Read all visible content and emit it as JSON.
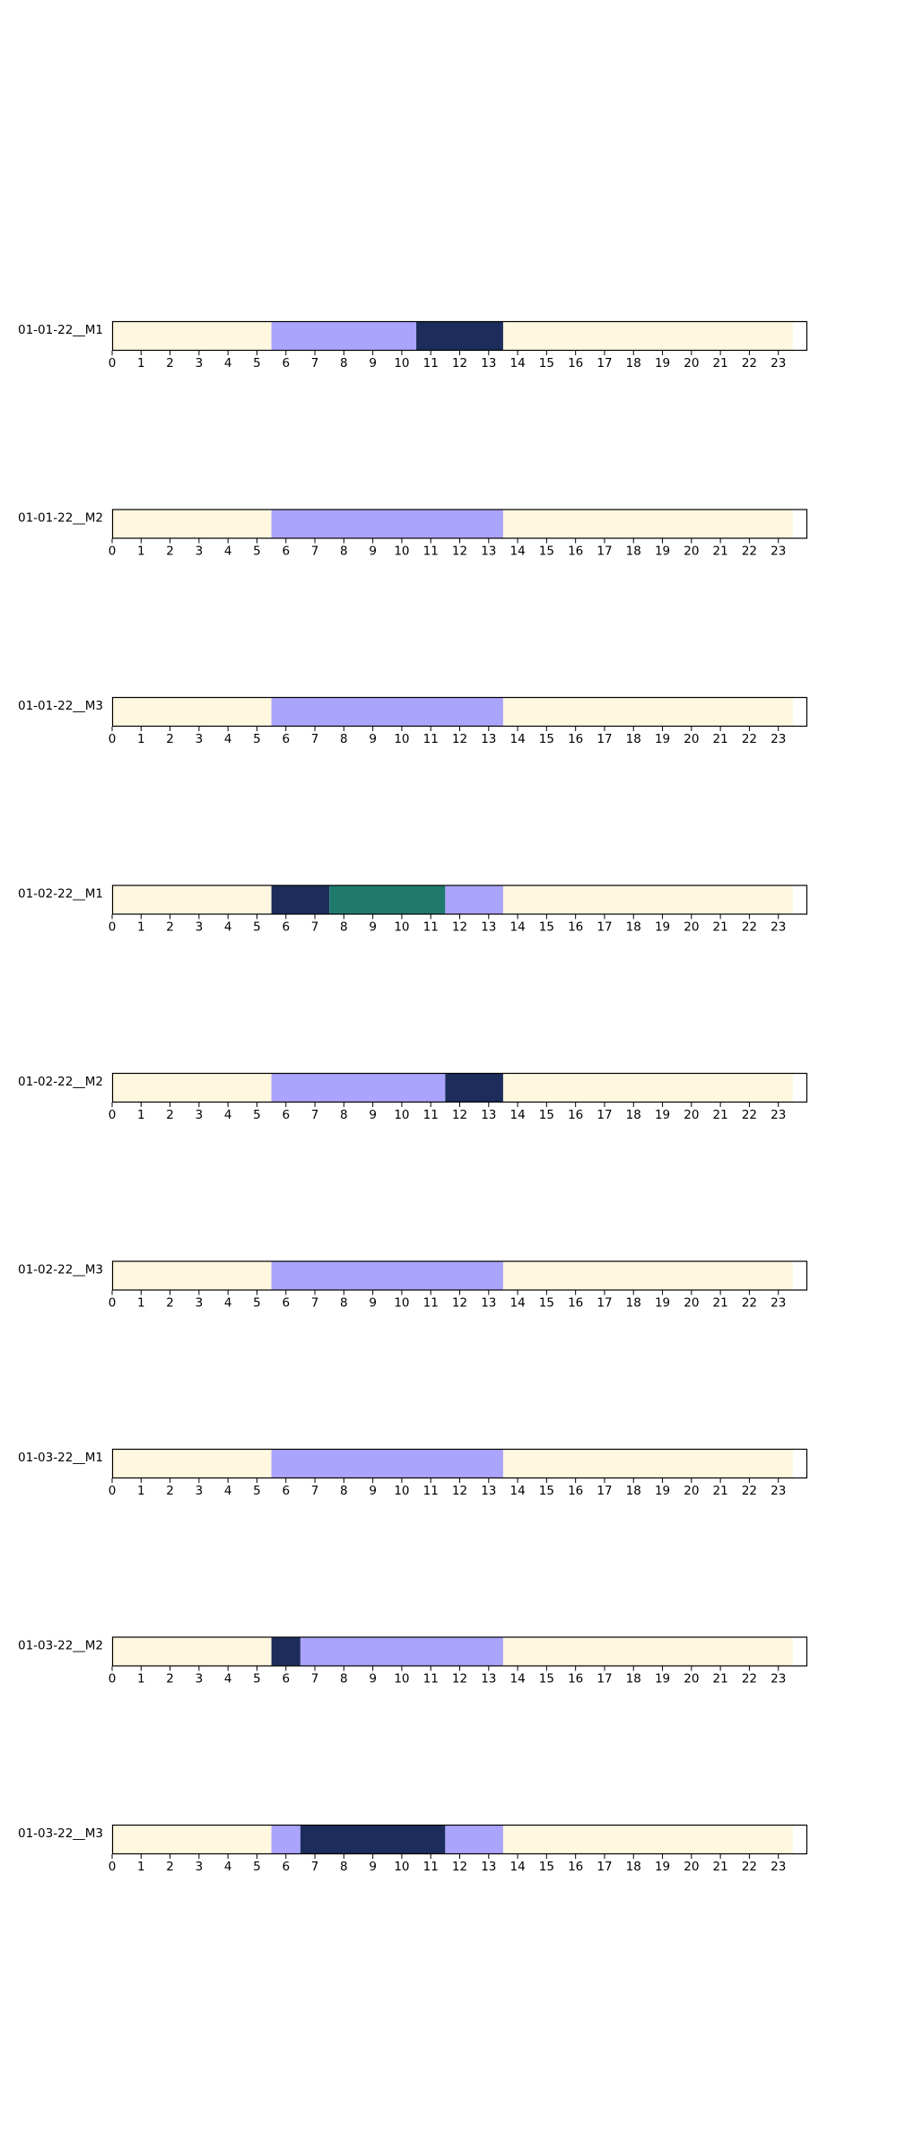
{
  "chart_data": {
    "type": "heatmap",
    "subtype": "hourly-timeline",
    "x_ticks": [
      "0",
      "1",
      "2",
      "3",
      "4",
      "5",
      "6",
      "7",
      "8",
      "9",
      "10",
      "11",
      "12",
      "13",
      "14",
      "15",
      "16",
      "17",
      "18",
      "19",
      "20",
      "21",
      "22",
      "23"
    ],
    "xlim": [
      0,
      24
    ],
    "grid": false,
    "legend": "none",
    "colors": {
      "background": "#fff7e0",
      "periwinkle": "#aaa4fc",
      "navy": "#1c2d5b",
      "teal": "#1f7a6c",
      "frame": "#000000"
    },
    "rows": [
      {
        "label": "01-01-22__M1",
        "segments": [
          {
            "start": 0,
            "end": 5.5,
            "color": "background"
          },
          {
            "start": 5.5,
            "end": 10.5,
            "color": "periwinkle"
          },
          {
            "start": 10.5,
            "end": 13.5,
            "color": "navy"
          },
          {
            "start": 13.5,
            "end": 23.5,
            "color": "background"
          }
        ]
      },
      {
        "label": "01-01-22__M2",
        "segments": [
          {
            "start": 0,
            "end": 5.5,
            "color": "background"
          },
          {
            "start": 5.5,
            "end": 13.5,
            "color": "periwinkle"
          },
          {
            "start": 13.5,
            "end": 23.5,
            "color": "background"
          }
        ]
      },
      {
        "label": "01-01-22__M3",
        "segments": [
          {
            "start": 0,
            "end": 5.5,
            "color": "background"
          },
          {
            "start": 5.5,
            "end": 13.5,
            "color": "periwinkle"
          },
          {
            "start": 13.5,
            "end": 23.5,
            "color": "background"
          }
        ]
      },
      {
        "label": "01-02-22__M1",
        "segments": [
          {
            "start": 0,
            "end": 5.5,
            "color": "background"
          },
          {
            "start": 5.5,
            "end": 7.5,
            "color": "navy"
          },
          {
            "start": 7.5,
            "end": 11.5,
            "color": "teal"
          },
          {
            "start": 11.5,
            "end": 13.5,
            "color": "periwinkle"
          },
          {
            "start": 13.5,
            "end": 23.5,
            "color": "background"
          }
        ]
      },
      {
        "label": "01-02-22__M2",
        "segments": [
          {
            "start": 0,
            "end": 5.5,
            "color": "background"
          },
          {
            "start": 5.5,
            "end": 11.5,
            "color": "periwinkle"
          },
          {
            "start": 11.5,
            "end": 13.5,
            "color": "navy"
          },
          {
            "start": 13.5,
            "end": 23.5,
            "color": "background"
          }
        ]
      },
      {
        "label": "01-02-22__M3",
        "segments": [
          {
            "start": 0,
            "end": 5.5,
            "color": "background"
          },
          {
            "start": 5.5,
            "end": 13.5,
            "color": "periwinkle"
          },
          {
            "start": 13.5,
            "end": 23.5,
            "color": "background"
          }
        ]
      },
      {
        "label": "01-03-22__M1",
        "segments": [
          {
            "start": 0,
            "end": 5.5,
            "color": "background"
          },
          {
            "start": 5.5,
            "end": 13.5,
            "color": "periwinkle"
          },
          {
            "start": 13.5,
            "end": 23.5,
            "color": "background"
          }
        ]
      },
      {
        "label": "01-03-22__M2",
        "segments": [
          {
            "start": 0,
            "end": 5.5,
            "color": "background"
          },
          {
            "start": 5.5,
            "end": 6.5,
            "color": "navy"
          },
          {
            "start": 6.5,
            "end": 13.5,
            "color": "periwinkle"
          },
          {
            "start": 13.5,
            "end": 23.5,
            "color": "background"
          }
        ]
      },
      {
        "label": "01-03-22__M3",
        "segments": [
          {
            "start": 0,
            "end": 5.5,
            "color": "background"
          },
          {
            "start": 5.5,
            "end": 6.5,
            "color": "periwinkle"
          },
          {
            "start": 6.5,
            "end": 11.5,
            "color": "navy"
          },
          {
            "start": 11.5,
            "end": 13.5,
            "color": "periwinkle"
          },
          {
            "start": 13.5,
            "end": 23.5,
            "color": "background"
          }
        ]
      }
    ]
  }
}
